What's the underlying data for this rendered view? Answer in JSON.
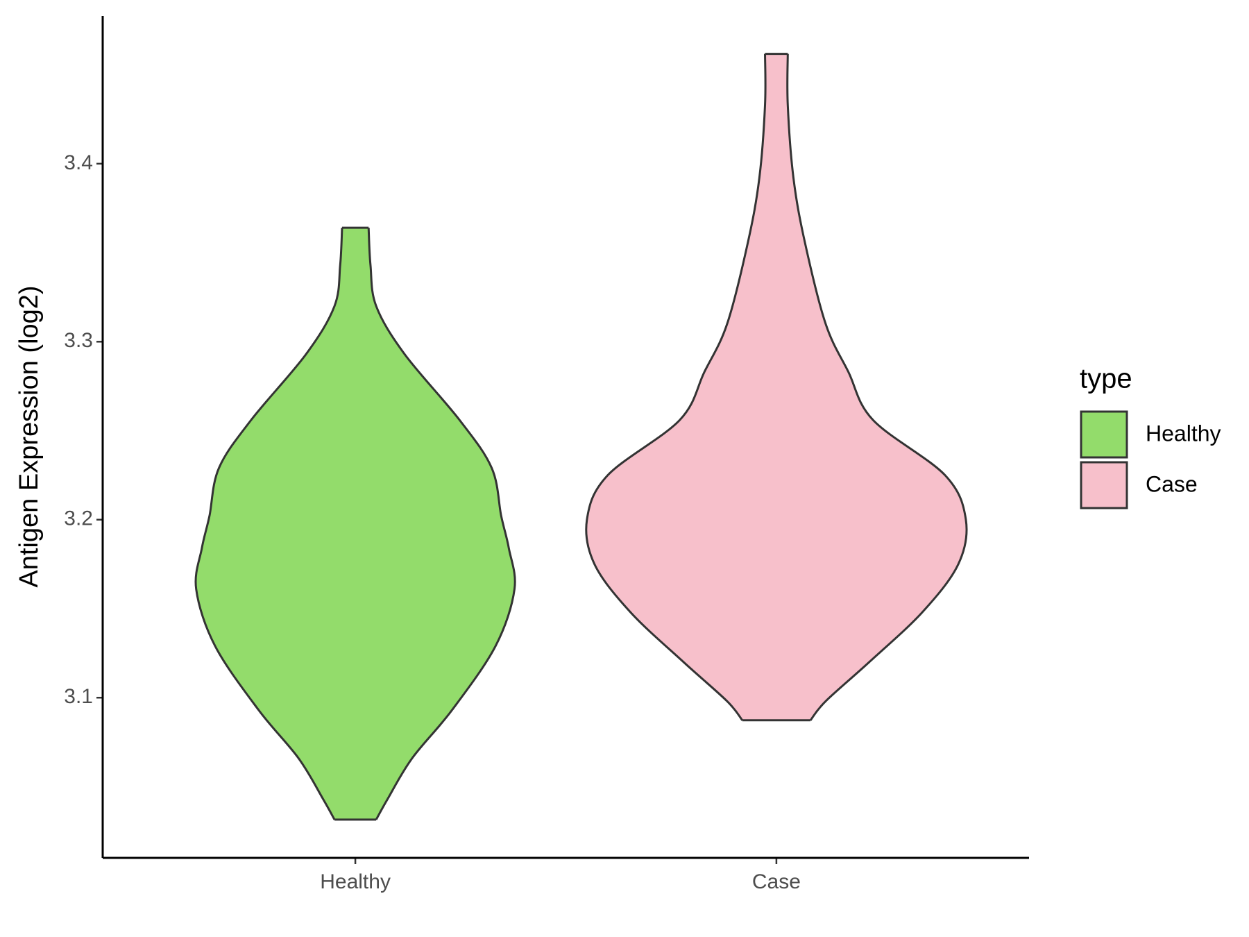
{
  "chart_data": {
    "type": "violin",
    "y_label": "Antigen Expression (log2)",
    "categories": [
      "Healthy",
      "Case"
    ],
    "ylim": [
      3.01,
      3.483
    ],
    "yticks": [
      3.1,
      3.2,
      3.3,
      3.4
    ],
    "legend_title": "type",
    "legend_position": "right",
    "series": [
      {
        "name": "Healthy",
        "color": "#93dc6b",
        "y": [
          3.0315,
          3.043,
          3.066,
          3.093,
          3.129,
          3.161,
          3.184,
          3.202,
          3.229,
          3.256,
          3.293,
          3.32,
          3.343,
          3.364
        ],
        "density": [
          0.11,
          0.17,
          0.3,
          0.51,
          0.74,
          0.84,
          0.81,
          0.77,
          0.72,
          0.55,
          0.26,
          0.11,
          0.08,
          0.07
        ]
      },
      {
        "name": "Case",
        "color": "#f7c0cb",
        "y": [
          3.0873,
          3.098,
          3.12,
          3.148,
          3.175,
          3.2,
          3.225,
          3.256,
          3.283,
          3.31,
          3.356,
          3.392,
          3.433,
          3.4617
        ],
        "density": [
          0.18,
          0.26,
          0.49,
          0.77,
          0.96,
          1.0,
          0.89,
          0.51,
          0.38,
          0.26,
          0.15,
          0.09,
          0.06,
          0.06
        ]
      }
    ]
  }
}
